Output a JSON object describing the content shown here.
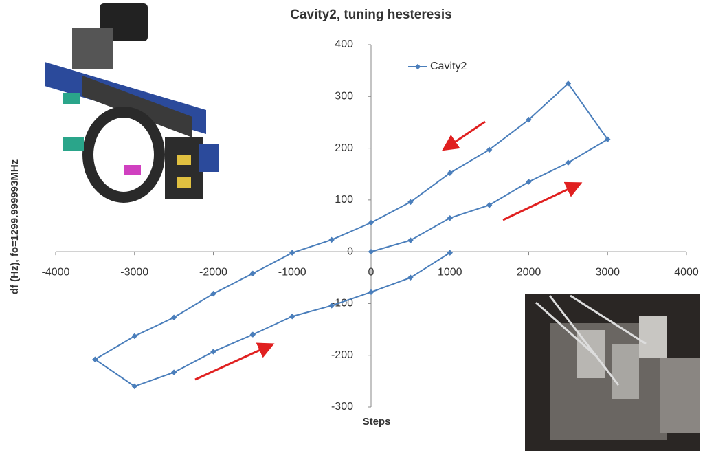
{
  "chart_data": {
    "type": "line",
    "title": "Cavity2, tuning hesteresis",
    "x_label": "Steps",
    "y_label": "df (Hz), fo=1299.999993MHz",
    "series": [
      {
        "name": "Cavity2",
        "color": "#4a7ebb",
        "x": [
          0,
          500,
          1000,
          1500,
          2000,
          2500,
          3000,
          2500,
          2000,
          1500,
          1000,
          500,
          0,
          -500,
          -1000,
          -1500,
          -2000,
          -2500,
          -3000,
          -3500,
          -3000,
          -2500,
          -2000,
          -1500,
          -1000,
          -500,
          0,
          500,
          1000
        ],
        "values": [
          0,
          22,
          65,
          90,
          135,
          172,
          217,
          325,
          255,
          197,
          152,
          96,
          56,
          23,
          -2,
          -42,
          -81,
          -127,
          -163,
          -208,
          -260,
          -233,
          -193,
          -160,
          -125,
          -104,
          -78,
          -50,
          -2
        ]
      }
    ],
    "xlim": [
      -4000,
      4000
    ],
    "xticks": [
      -4000,
      -3000,
      -2000,
      -1000,
      0,
      1000,
      2000,
      3000,
      4000
    ],
    "ylim": [
      -300,
      400
    ],
    "yticks": [
      -300,
      -200,
      -100,
      0,
      100,
      200,
      300,
      400
    ]
  }
}
